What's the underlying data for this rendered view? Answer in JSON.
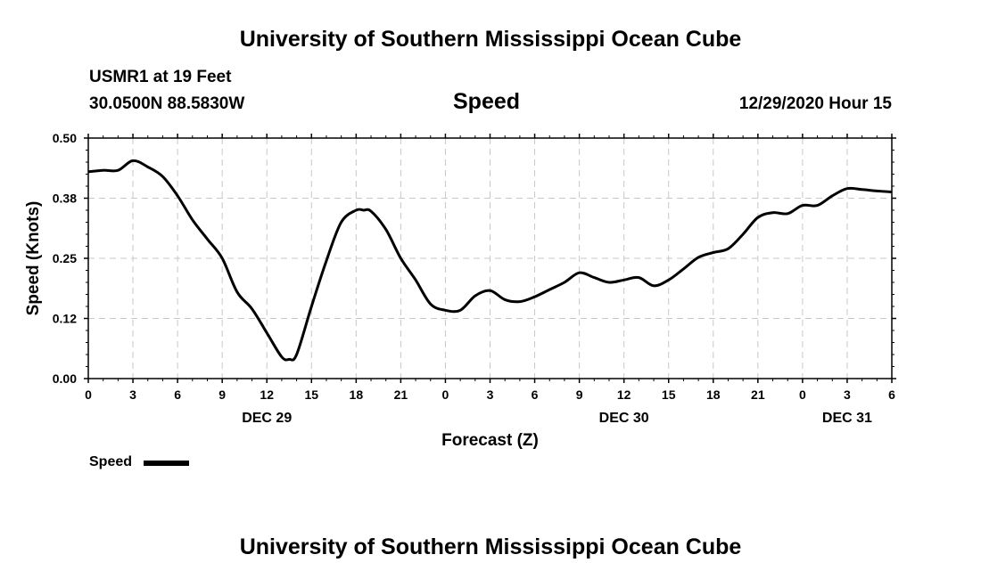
{
  "header": {
    "title_top": "University of Southern Mississippi Ocean Cube",
    "station": "USMR1 at 19 Feet",
    "coords": "30.0500N 88.5830W",
    "variable": "Speed",
    "timestamp": "12/29/2020 Hour 15",
    "title_bottom": "University of Southern Mississippi Ocean Cube"
  },
  "legend": {
    "label": "Speed",
    "color": "#000000"
  },
  "chart_data": {
    "type": "line",
    "title": "Speed",
    "xlabel": "Forecast (Z)",
    "ylabel": "Speed (Knots)",
    "ylim": [
      0,
      0.5
    ],
    "xlim": [
      0,
      54
    ],
    "grid": true,
    "y_ticks": [
      "0.00",
      "0.12",
      "0.25",
      "0.38",
      "0.50"
    ],
    "y_tick_values": [
      0,
      0.125,
      0.25,
      0.375,
      0.5
    ],
    "x_ticks": [
      "0",
      "3",
      "6",
      "9",
      "12",
      "15",
      "18",
      "21",
      "0",
      "3",
      "6",
      "9",
      "12",
      "15",
      "18",
      "21",
      "0",
      "3",
      "6"
    ],
    "date_labels": [
      {
        "label": "DEC 29",
        "hour": 12
      },
      {
        "label": "DEC 30",
        "hour": 36
      },
      {
        "label": "DEC 31",
        "hour": 51
      }
    ],
    "series": [
      {
        "name": "Speed",
        "color": "#000000",
        "x": [
          0,
          1,
          2,
          3,
          4,
          5,
          6,
          7,
          8,
          9,
          10,
          11,
          12,
          13,
          13.5,
          14,
          15,
          16,
          17,
          18,
          18.5,
          19,
          20,
          21,
          22,
          23,
          24,
          25,
          26,
          27,
          28,
          29,
          30,
          31,
          32,
          33,
          34,
          35,
          36,
          37,
          38,
          39,
          40,
          41,
          42,
          43,
          44,
          45,
          46,
          47,
          48,
          49,
          50,
          51,
          52,
          53,
          54
        ],
        "values": [
          0.43,
          0.433,
          0.433,
          0.453,
          0.44,
          0.42,
          0.38,
          0.33,
          0.29,
          0.25,
          0.18,
          0.145,
          0.095,
          0.045,
          0.04,
          0.05,
          0.15,
          0.245,
          0.325,
          0.35,
          0.35,
          0.348,
          0.31,
          0.25,
          0.205,
          0.155,
          0.142,
          0.142,
          0.172,
          0.183,
          0.164,
          0.16,
          0.17,
          0.185,
          0.2,
          0.22,
          0.21,
          0.2,
          0.205,
          0.21,
          0.193,
          0.205,
          0.228,
          0.252,
          0.262,
          0.27,
          0.3,
          0.335,
          0.345,
          0.343,
          0.36,
          0.36,
          0.38,
          0.395,
          0.393,
          0.39,
          0.388
        ]
      }
    ]
  }
}
